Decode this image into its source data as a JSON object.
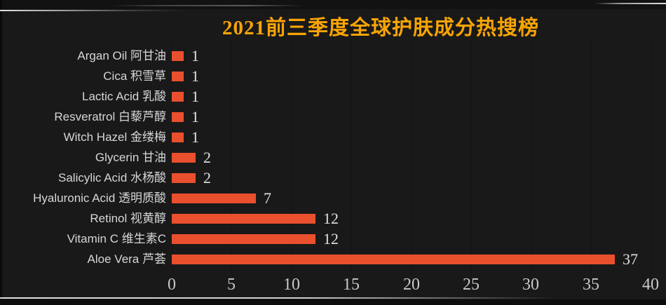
{
  "page": {
    "background_color": "#191919",
    "title_color": "#f9a405",
    "bar_color": "#ea4f2e"
  },
  "chart_data": {
    "type": "bar",
    "orientation": "horizontal",
    "title": "2021前三季度全球护肤成分热搜榜",
    "categories": [
      "Argan Oil 阿甘油",
      "Cica 积雪草",
      "Lactic Acid 乳酸",
      "Resveratrol 白藜芦醇",
      "Witch Hazel 金缕梅",
      "Glycerin 甘油",
      "Salicylic Acid 水杨酸",
      "Hyaluronic Acid 透明质酸",
      "Retinol 视黄醇",
      "Vitamin C 维生素C",
      "Aloe Vera 芦荟"
    ],
    "values": [
      1,
      1,
      1,
      1,
      1,
      2,
      2,
      7,
      12,
      12,
      37
    ],
    "value_labels": [
      "1",
      "1",
      "1",
      "1",
      "1",
      "2",
      "2",
      "7",
      "12",
      "12",
      "37"
    ],
    "xlabel": "",
    "ylabel": "",
    "xlim": [
      0,
      40
    ],
    "x_ticks": [
      0,
      5,
      10,
      15,
      20,
      25,
      30,
      35,
      40
    ],
    "bar_color": "#ea4f2e",
    "grid": "off",
    "legend_position": "none"
  }
}
